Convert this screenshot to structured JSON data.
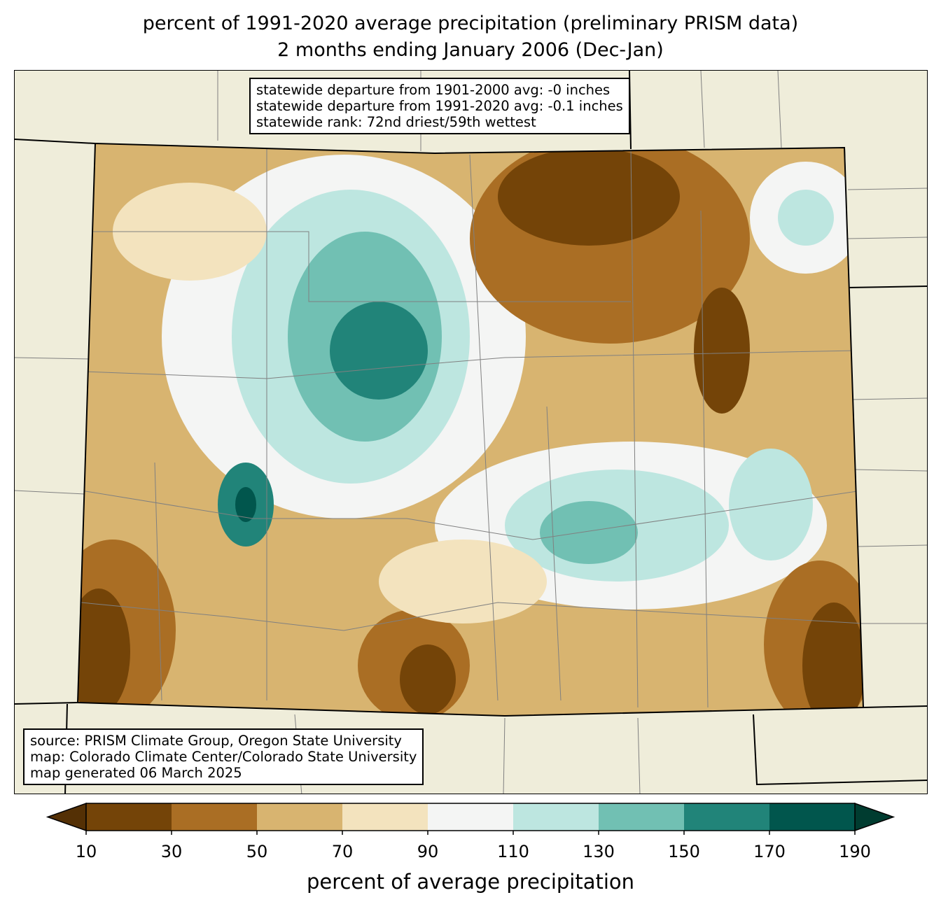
{
  "title_line1": "percent of 1991-2020 average precipitation (preliminary PRISM data)",
  "title_line2": "2 months ending January 2006 (Dec-Jan)",
  "stats": {
    "line1": "statewide departure from 1901-2000 avg: -0 inches",
    "line2": "statewide departure from 1991-2020 avg: -0.1 inches",
    "line3": "statewide rank: 72nd driest/59th wettest"
  },
  "credits": {
    "line1": "source: PRISM Climate Group, Oregon State University",
    "line2": "map: Colorado Climate Center/Colorado State University",
    "line3": "map generated 06 March 2025"
  },
  "colorbar": {
    "label": "percent of average precipitation",
    "ticks": [
      "10",
      "30",
      "50",
      "70",
      "90",
      "110",
      "130",
      "150",
      "170",
      "190"
    ],
    "under_color": "#543005",
    "over_color": "#003c30",
    "colors": [
      "#744408",
      "#aa6e24",
      "#d8b470",
      "#f3e3be",
      "#f4f5f4",
      "#bde6e0",
      "#71c0b3",
      "#218479",
      "#01564d"
    ]
  },
  "colors": {
    "land_outside": "#efedda",
    "state_border": "#000000",
    "county_border": "#808080"
  }
}
